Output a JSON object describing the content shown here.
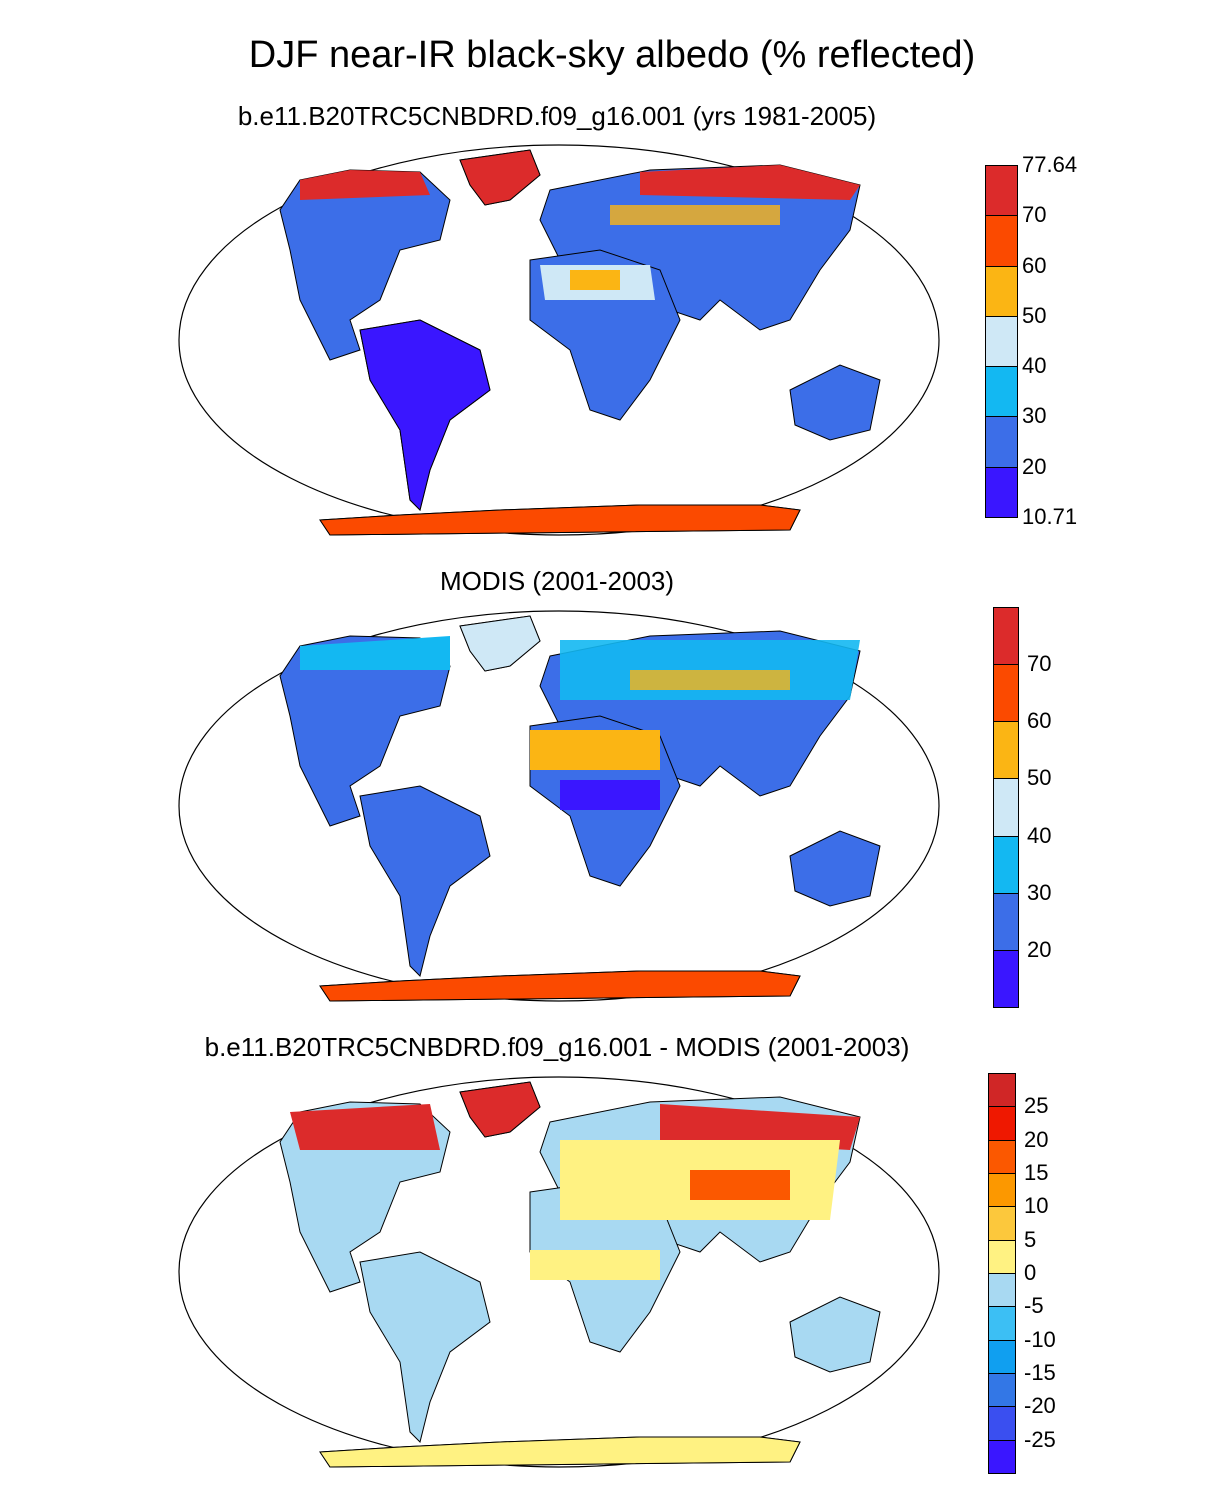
{
  "title": "DJF near-IR black-sky albedo (% reflected)",
  "panels": [
    {
      "subtitle": "b.e11.B20TRC5CNBDRD.f09_g16.001 (yrs 1981-2005)",
      "colorbar": {
        "colors": [
          "#3a16ff",
          "#3c6ee8",
          "#13b8f2",
          "#cfe8f6",
          "#fbb514",
          "#fb4a00",
          "#dc2b2b"
        ],
        "labels": [
          "10.71",
          "20",
          "30",
          "40",
          "50",
          "60",
          "70",
          "77.64"
        ]
      }
    },
    {
      "subtitle": "MODIS (2001-2003)",
      "colorbar": {
        "colors": [
          "#3a16ff",
          "#3c6ee8",
          "#13b8f2",
          "#cfe8f6",
          "#fbb514",
          "#fb4a00",
          "#dc2b2b"
        ],
        "labels": [
          "20",
          "30",
          "40",
          "50",
          "60",
          "70"
        ]
      }
    },
    {
      "subtitle": "b.e11.B20TRC5CNBDRD.f09_g16.001 - MODIS (2001-2003)",
      "colorbar": {
        "colors": [
          "#3a16ff",
          "#3a4ff0",
          "#3377e6",
          "#109ff0",
          "#3cbff4",
          "#a8d9f2",
          "#fff282",
          "#fcc83c",
          "#fc9800",
          "#fb5800",
          "#ef1800",
          "#d02626"
        ],
        "labels": [
          "-25",
          "-20",
          "-15",
          "-10",
          "-5",
          "0",
          "5",
          "10",
          "15",
          "20",
          "25"
        ]
      }
    }
  ]
}
